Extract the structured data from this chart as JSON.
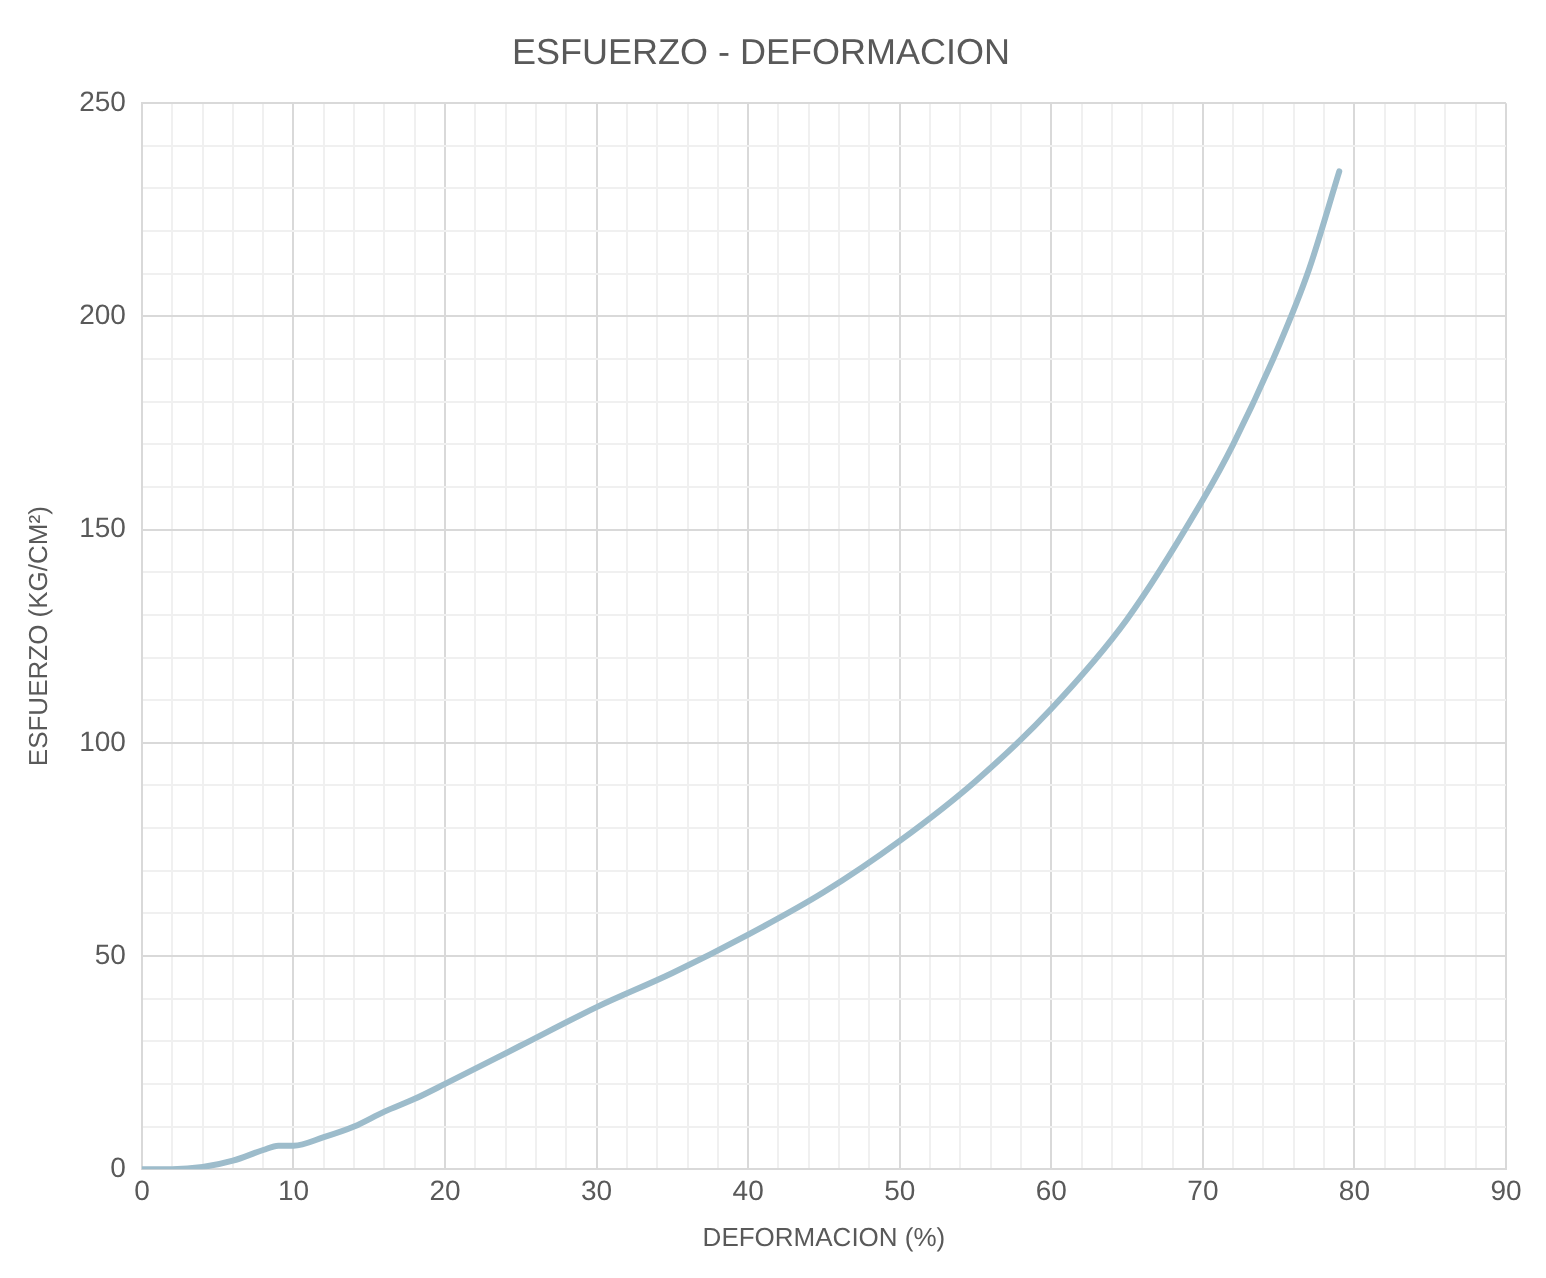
{
  "chart_data": {
    "type": "line",
    "title": "ESFUERZO - DEFORMACION",
    "xlabel": "DEFORMACION (%)",
    "ylabel": "ESFUERZO (KG/CM²)",
    "x": [
      0,
      2,
      4,
      6,
      8,
      9,
      10,
      12,
      14,
      16,
      18,
      20,
      25,
      30,
      35,
      40,
      45,
      50,
      55,
      60,
      65,
      70,
      72,
      75,
      77,
      79
    ],
    "series": [
      {
        "color": "#9dbccb",
        "values": [
          0,
          0,
          0.5,
          2,
          4.5,
          5.5,
          5.5,
          7.5,
          10,
          13.5,
          16.5,
          20,
          29,
          38,
          46,
          55,
          65,
          77,
          91,
          108,
          129,
          157,
          170,
          193,
          211,
          234
        ]
      }
    ],
    "xlim": [
      0,
      90
    ],
    "xticks": [
      0,
      {
        "value": 2,
        "label": null
      },
      {
        "value": 4,
        "label": null
      },
      {
        "value": 6,
        "label": null
      },
      {
        "value": 8,
        "label": null
      },
      10,
      {
        "value": 12,
        "label": null
      },
      {
        "value": 14,
        "label": null
      },
      {
        "value": 16,
        "label": null
      },
      {
        "value": 18,
        "label": null
      },
      20,
      {
        "value": 22,
        "label": null
      },
      {
        "value": 24,
        "label": null
      },
      {
        "value": 26,
        "label": null
      },
      {
        "value": 28,
        "label": null
      },
      30,
      {
        "value": 32,
        "label": null
      },
      {
        "value": 34,
        "label": null
      },
      {
        "value": 36,
        "label": null
      },
      {
        "value": 38,
        "label": null
      },
      40,
      {
        "value": 42,
        "label": null
      },
      {
        "value": 44,
        "label": null
      },
      {
        "value": 46,
        "label": null
      },
      {
        "value": 48,
        "label": null
      },
      50,
      {
        "value": 52,
        "label": null
      },
      {
        "value": 54,
        "label": null
      },
      {
        "value": 56,
        "label": null
      },
      {
        "value": 58,
        "label": null
      },
      60,
      {
        "value": 62,
        "label": null
      },
      {
        "value": 64,
        "label": null
      },
      {
        "value": 66,
        "label": null
      },
      {
        "value": 68,
        "label": null
      },
      70,
      {
        "value": 72,
        "label": null
      },
      {
        "value": 74,
        "label": null
      },
      {
        "value": 76,
        "label": null
      },
      {
        "value": 78,
        "label": null
      },
      80,
      {
        "value": 82,
        "label": null
      },
      {
        "value": 84,
        "label": null
      },
      {
        "value": 86,
        "label": null
      },
      {
        "value": 88,
        "label": null
      },
      90
    ],
    "ylim": [
      0,
      250
    ],
    "yticks": [
      0,
      {
        "value": 10,
        "label": null
      },
      {
        "value": 20,
        "label": null
      },
      {
        "value": 30,
        "label": null
      },
      {
        "value": 40,
        "label": null
      },
      50,
      {
        "value": 60,
        "label": null
      },
      {
        "value": 70,
        "label": null
      },
      {
        "value": 80,
        "label": null
      },
      {
        "value": 90,
        "label": null
      },
      100,
      {
        "value": 110,
        "label": null
      },
      {
        "value": 120,
        "label": null
      },
      {
        "value": 130,
        "label": null
      },
      {
        "value": 140,
        "label": null
      },
      150,
      {
        "value": 160,
        "label": null
      },
      {
        "value": 170,
        "label": null
      },
      {
        "value": 180,
        "label": null
      },
      {
        "value": 190,
        "label": null
      },
      200,
      {
        "value": 210,
        "label": null
      },
      {
        "value": 220,
        "label": null
      },
      {
        "value": 230,
        "label": null
      },
      {
        "value": 240,
        "label": null
      },
      250
    ],
    "grid": true,
    "marker": "none",
    "line_style": "solid",
    "legend": false
  }
}
